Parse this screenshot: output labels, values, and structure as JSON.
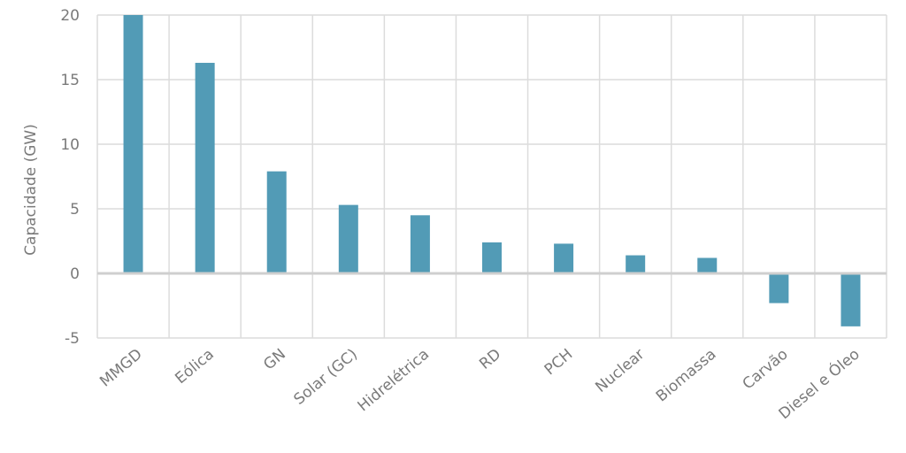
{
  "chart_data": {
    "type": "bar",
    "categories": [
      "MMGD",
      "Eólica",
      "GN",
      "Solar (GC)",
      "Hidrelétrica",
      "RD",
      "PCH",
      "Nuclear",
      "Biomassa",
      "Carvão",
      "Diesel e Óleo"
    ],
    "values": [
      20.0,
      16.3,
      7.9,
      5.3,
      4.5,
      2.4,
      2.3,
      1.4,
      1.2,
      -2.3,
      -4.1
    ],
    "title": "",
    "xlabel": "",
    "ylabel": "Capacidade (GW)",
    "ylim": [
      -5,
      20
    ],
    "yticks": [
      20,
      15,
      10,
      5,
      0,
      -5
    ],
    "bar_color": "#529bb6",
    "grid": true,
    "legend": "none"
  }
}
